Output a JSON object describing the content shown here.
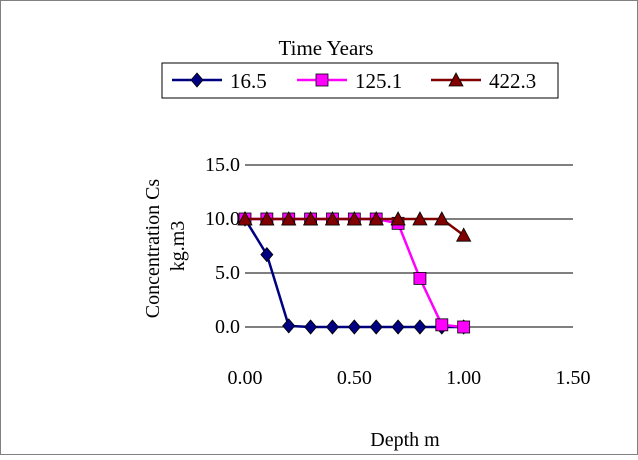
{
  "chart_data": {
    "type": "line",
    "legend_title": "Time Years",
    "legend_position": "top",
    "xlabel": "Depth m",
    "ylabel_lines": [
      "Concentration Cs",
      "kg.m3"
    ],
    "xlim": [
      0,
      1.5
    ],
    "ylim": [
      0,
      15
    ],
    "xticks": [
      "0.00",
      "0.50",
      "1.00",
      "1.50"
    ],
    "yticks": [
      "0.0",
      "5.0",
      "10.0",
      "15.0"
    ],
    "grid": "horizontal",
    "series": [
      {
        "name": "16.5",
        "color": "#000080",
        "marker": "diamond",
        "x": [
          0.0,
          0.1,
          0.2,
          0.3,
          0.4,
          0.5,
          0.6,
          0.7,
          0.8,
          0.9,
          1.0
        ],
        "y": [
          10.0,
          6.7,
          0.1,
          0.0,
          0.0,
          0.0,
          0.0,
          0.0,
          0.0,
          0.0,
          0.0
        ]
      },
      {
        "name": "125.1",
        "color": "#ff00ff",
        "marker": "square",
        "x": [
          0.0,
          0.1,
          0.2,
          0.3,
          0.4,
          0.5,
          0.6,
          0.7,
          0.8,
          0.9,
          1.0
        ],
        "y": [
          10.0,
          10.0,
          10.0,
          10.0,
          10.0,
          10.0,
          10.0,
          9.6,
          4.5,
          0.2,
          0.0
        ]
      },
      {
        "name": "422.3",
        "color": "#800000",
        "marker": "triangle",
        "x": [
          0.0,
          0.1,
          0.2,
          0.3,
          0.4,
          0.5,
          0.6,
          0.7,
          0.8,
          0.9,
          1.0
        ],
        "y": [
          10.0,
          10.0,
          10.0,
          10.0,
          10.0,
          10.0,
          10.0,
          10.0,
          10.0,
          10.0,
          8.5
        ]
      }
    ]
  }
}
